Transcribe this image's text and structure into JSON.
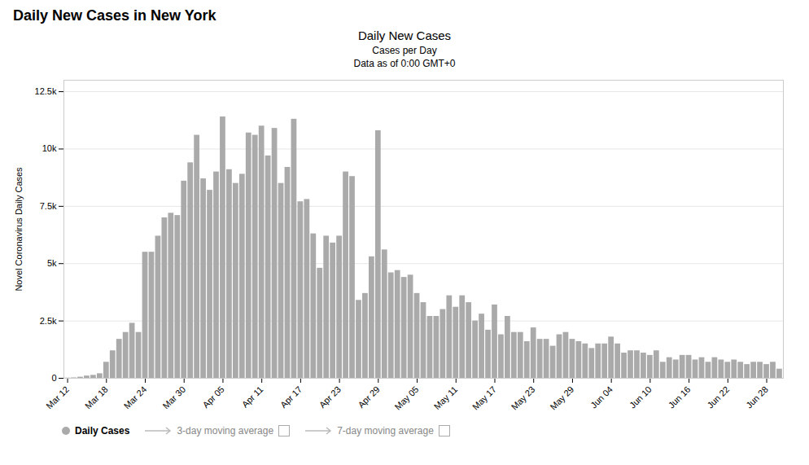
{
  "chart_data": {
    "type": "bar",
    "title": "Daily New Cases in New York",
    "subtitle": [
      "Daily New Cases",
      "Cases per Day",
      "Data as of 0:00 GMT+0"
    ],
    "ylabel": "Novel Coronavirus Daily Cases",
    "categories": [
      "Mar 12",
      null,
      null,
      null,
      null,
      null,
      "Mar 18",
      null,
      null,
      null,
      null,
      null,
      "Mar 24",
      null,
      null,
      null,
      null,
      null,
      "Mar 30",
      null,
      null,
      null,
      null,
      null,
      "Apr 05",
      null,
      null,
      null,
      null,
      null,
      "Apr 11",
      null,
      null,
      null,
      null,
      null,
      "Apr 17",
      null,
      null,
      null,
      null,
      null,
      "Apr 23",
      null,
      null,
      null,
      null,
      null,
      "Apr 29",
      null,
      null,
      null,
      null,
      null,
      "May 05",
      null,
      null,
      null,
      null,
      null,
      "May 11",
      null,
      null,
      null,
      null,
      null,
      "May 17",
      null,
      null,
      null,
      null,
      null,
      "May 23",
      null,
      null,
      null,
      null,
      null,
      "May 29",
      null,
      null,
      null,
      null,
      null,
      "Jun 04",
      null,
      null,
      null,
      null,
      null,
      "Jun 10",
      null,
      null,
      null,
      null,
      null,
      "Jun 16",
      null,
      null,
      null,
      null,
      null,
      "Jun 22",
      null,
      null,
      null,
      null,
      null,
      "Jun 28",
      null,
      null
    ],
    "series": [
      {
        "name": "Daily Cases",
        "color": "#aaaaaa",
        "values": [
          10,
          20,
          50,
          100,
          130,
          200,
          700,
          1200,
          1700,
          2000,
          2400,
          2000,
          5500,
          5500,
          6200,
          7000,
          7200,
          7100,
          8600,
          9400,
          10600,
          8700,
          8200,
          9000,
          11400,
          9100,
          8500,
          8900,
          10700,
          10600,
          11000,
          9700,
          10900,
          8500,
          9200,
          11300,
          7700,
          7800,
          6300,
          4800,
          6200,
          5900,
          6200,
          9000,
          8800,
          3400,
          3700,
          5300,
          10800,
          5600,
          4600,
          4700,
          4400,
          4500,
          3700,
          3300,
          2700,
          2700,
          3000,
          3600,
          3100,
          3600,
          3300,
          2500,
          2800,
          2100,
          3200,
          1900,
          2700,
          2000,
          2000,
          1600,
          2200,
          1700,
          1700,
          1400,
          1900,
          2000,
          1700,
          1600,
          1500,
          1300,
          1500,
          1500,
          1800,
          1500,
          1100,
          1200,
          1200,
          1100,
          1000,
          1200,
          700,
          900,
          800,
          1000,
          1000,
          800,
          900,
          700,
          900,
          800,
          700,
          800,
          700,
          600,
          700,
          700,
          600,
          700,
          400
        ]
      }
    ],
    "annotations": [
      "3-day moving average",
      "7-day moving average"
    ],
    "ylim": [
      0,
      13000
    ],
    "yticks": [
      0,
      {
        "value": 2500,
        "label": "2.5k"
      },
      {
        "value": 5000,
        "label": "5k"
      },
      {
        "value": 7500,
        "label": "7.5k"
      },
      {
        "value": 10000,
        "label": "10k"
      },
      {
        "value": 12500,
        "label": "12.5k"
      }
    ],
    "grid": true,
    "legend": "bottom"
  }
}
